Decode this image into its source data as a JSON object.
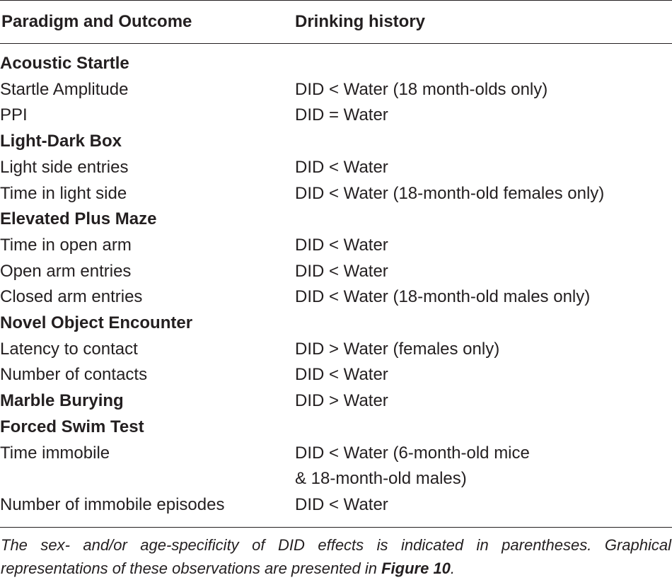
{
  "table": {
    "headers": {
      "col1": "Paradigm and Outcome",
      "col2": "Drinking history"
    },
    "rows": [
      {
        "type": "group",
        "outcome": "Acoustic Startle",
        "history": ""
      },
      {
        "type": "item",
        "outcome": "Startle Amplitude",
        "history": "DID < Water (18 month-olds only)"
      },
      {
        "type": "item",
        "outcome": "PPI",
        "history": "DID = Water"
      },
      {
        "type": "group",
        "outcome": "Light-Dark Box",
        "history": ""
      },
      {
        "type": "item",
        "outcome": "Light side entries",
        "history": "DID < Water"
      },
      {
        "type": "item",
        "outcome": "Time in light side",
        "history": "DID < Water (18-month-old females only)"
      },
      {
        "type": "group",
        "outcome": "Elevated Plus Maze",
        "history": ""
      },
      {
        "type": "item",
        "outcome": "Time in open arm",
        "history": "DID < Water"
      },
      {
        "type": "item",
        "outcome": "Open arm entries",
        "history": "DID < Water"
      },
      {
        "type": "item",
        "outcome": "Closed arm entries",
        "history": "DID < Water (18-month-old males only)"
      },
      {
        "type": "group",
        "outcome": "Novel Object Encounter",
        "history": ""
      },
      {
        "type": "item",
        "outcome": "Latency to contact",
        "history": "DID > Water (females only)"
      },
      {
        "type": "item",
        "outcome": "Number of contacts",
        "history": "DID < Water"
      },
      {
        "type": "group",
        "outcome": "Marble Burying",
        "history": "DID > Water"
      },
      {
        "type": "group",
        "outcome": "Forced Swim Test",
        "history": ""
      },
      {
        "type": "item",
        "outcome": "Time immobile",
        "history": "DID < Water (6-month-old mice",
        "history_line2": "& 18-month-old males)"
      },
      {
        "type": "item",
        "outcome": "Number of immobile episodes",
        "history": "DID < Water"
      }
    ]
  },
  "footnote": {
    "text": "The sex- and/or age-specificity of DID effects is indicated in parentheses. Graphical representations of these observations are presented in ",
    "figure_ref": "Figure 10",
    "end": "."
  }
}
